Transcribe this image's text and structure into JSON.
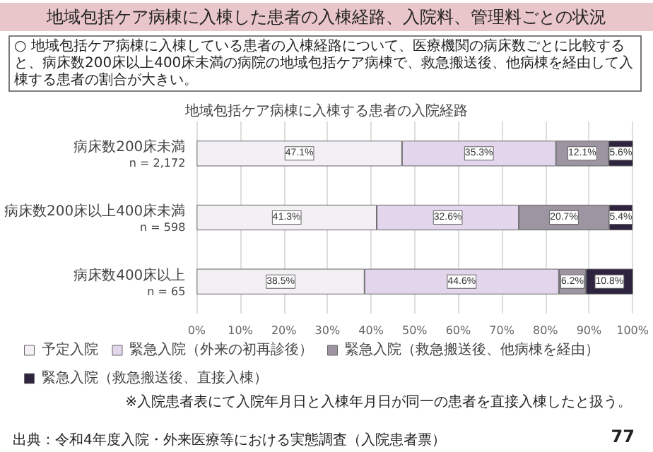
{
  "chart_data": {
    "type": "bar",
    "orientation": "horizontal",
    "stacked": true,
    "title": "地域包括ケア病棟に入棟した患者の入棟経路、入院料、管理料ごとの状況",
    "subtitle": "○ 地域包括ケア病棟に入棟している患者の入棟経路について、医療機関の病床数ごとに比較すると、病床数200床以上400床未満の病院の地域包括ケア病棟で、救急搬送後、他病棟を経由して入棟する患者の割合が大きい。",
    "annotations": [
      "地域包括ケア病棟に入棟する患者の入院経路",
      "※入院患者表にて入院年月日と入棟年月日が同一の患者を直接入棟したと扱う。",
      "出典：令和4年度入院・外来医療等における実態調査（入院患者票）",
      "77"
    ],
    "categories": [
      "病床数200床未満\nn = 2,172",
      "病床数200床以上400床未満\nn = 598",
      "病床数400床以上\nn = 65"
    ],
    "series": [
      {
        "name": "予定入院",
        "color": "#f3eff5",
        "values": [
          47.1,
          41.3,
          38.5
        ],
        "value_labels": [
          "47.1%",
          "41.3%",
          "38.5%"
        ]
      },
      {
        "name": "緊急入院（外来の初再診後）",
        "color": "#e2d5ec",
        "values": [
          35.3,
          32.6,
          44.6
        ],
        "value_labels": [
          "35.3%",
          "32.6%",
          "44.6%"
        ]
      },
      {
        "name": "緊急入院（救急搬送後、他病棟を経由）",
        "color": "#9d96a2",
        "values": [
          12.1,
          20.7,
          6.2
        ],
        "value_labels": [
          "12.1%",
          "20.7%",
          "6.2%"
        ]
      },
      {
        "name": "緊急入院（救急搬送後、直接入棟）",
        "color": "#2e2440",
        "values": [
          5.6,
          5.4,
          10.8
        ],
        "value_labels": [
          "5.6%",
          "5.4%",
          "10.8%"
        ]
      }
    ],
    "xlim": [
      0,
      100
    ],
    "xticks": [
      {
        "value": 0,
        "label": "0%"
      },
      {
        "value": 10,
        "label": "10%"
      },
      {
        "value": 20,
        "label": "20%"
      },
      {
        "value": 30,
        "label": "30%"
      },
      {
        "value": 40,
        "label": "40%"
      },
      {
        "value": 50,
        "label": "50%"
      },
      {
        "value": 60,
        "label": "60%"
      },
      {
        "value": 70,
        "label": "70%"
      },
      {
        "value": 80,
        "label": "80%"
      },
      {
        "value": 90,
        "label": "90%"
      },
      {
        "value": 100,
        "label": "100%"
      }
    ],
    "grid": "x",
    "legend": "bottom"
  }
}
